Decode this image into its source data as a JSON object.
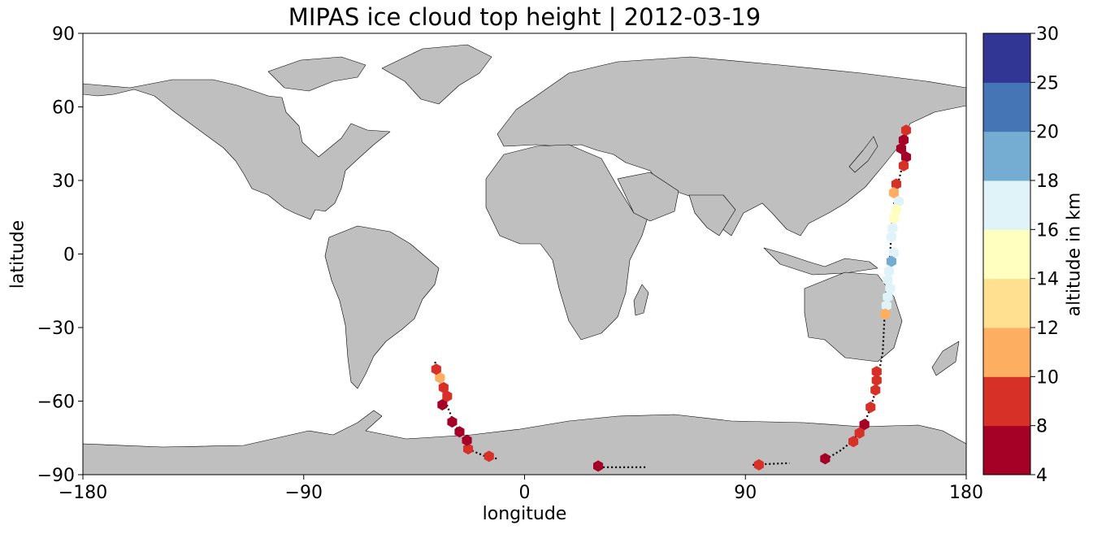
{
  "title": "MIPAS ice cloud top height | 2012-03-19",
  "xlabel": "longitude",
  "ylabel": "latitude",
  "colorbar": {
    "label": "altitude in km",
    "boundaries": [
      4,
      8,
      10,
      12,
      14,
      16,
      18,
      20,
      25,
      30
    ],
    "tick_labels": [
      "4",
      "8",
      "10",
      "12",
      "14",
      "16",
      "18",
      "20",
      "25",
      "30"
    ],
    "colors": [
      "#a50026",
      "#d73027",
      "#f46d43",
      "#fdae61",
      "#fee090",
      "#ffffbf",
      "#e0f3f8",
      "#abd9e9",
      "#74add1",
      "#4575b4",
      "#313695"
    ]
  },
  "land_color": "#bfbfbf",
  "x_ticks": [
    "−180",
    "−90",
    "0",
    "90",
    "180"
  ],
  "y_ticks": [
    "90",
    "60",
    "30",
    "0",
    "−30",
    "−60",
    "−90"
  ],
  "chart_data": {
    "type": "scatter",
    "xlim": [
      -180,
      180
    ],
    "ylim": [
      -90,
      90
    ],
    "x_tick_values": [
      -180,
      -90,
      0,
      90,
      180
    ],
    "y_tick_values": [
      90,
      60,
      30,
      0,
      -30,
      -60,
      -90
    ],
    "points": [
      {
        "lon": 155.5,
        "lat": 50.5,
        "alt": 9
      },
      {
        "lon": 154.5,
        "lat": 46.5,
        "alt": 6
      },
      {
        "lon": 153.5,
        "lat": 43.0,
        "alt": 6
      },
      {
        "lon": 155.5,
        "lat": 39.5,
        "alt": 6
      },
      {
        "lon": 154.5,
        "lat": 36.0,
        "alt": 9
      },
      {
        "lon": 151.5,
        "lat": 28.5,
        "alt": 9
      },
      {
        "lon": 150.5,
        "lat": 25.0,
        "alt": 11
      },
      {
        "lon": 152.5,
        "lat": 21.5,
        "alt": 17
      },
      {
        "lon": 151.5,
        "lat": 18.0,
        "alt": 15
      },
      {
        "lon": 150.5,
        "lat": 14.5,
        "alt": 15
      },
      {
        "lon": 150.0,
        "lat": 10.5,
        "alt": 17
      },
      {
        "lon": 149.5,
        "lat": 7.0,
        "alt": 17
      },
      {
        "lon": 150.5,
        "lat": 0.5,
        "alt": 17
      },
      {
        "lon": 149.5,
        "lat": -3.0,
        "alt": 19
      },
      {
        "lon": 148.5,
        "lat": -7.0,
        "alt": 17
      },
      {
        "lon": 148.0,
        "lat": -10.5,
        "alt": 17
      },
      {
        "lon": 149.0,
        "lat": -14.0,
        "alt": 17
      },
      {
        "lon": 148.0,
        "lat": -17.5,
        "alt": 17
      },
      {
        "lon": 147.5,
        "lat": -21.0,
        "alt": 17
      },
      {
        "lon": 147.0,
        "lat": -24.5,
        "alt": 11
      },
      {
        "lon": 143.5,
        "lat": -48.0,
        "alt": 9
      },
      {
        "lon": 143.5,
        "lat": -51.5,
        "alt": 9
      },
      {
        "lon": 143.0,
        "lat": -55.5,
        "alt": 9
      },
      {
        "lon": 141.0,
        "lat": -62.5,
        "alt": 9
      },
      {
        "lon": 138.5,
        "lat": -69.5,
        "alt": 6
      },
      {
        "lon": 136.5,
        "lat": -73.0,
        "alt": 9
      },
      {
        "lon": 134.0,
        "lat": -76.5,
        "alt": 9
      },
      {
        "lon": 122.5,
        "lat": -83.5,
        "alt": 6
      },
      {
        "lon": 95.5,
        "lat": -86.0,
        "alt": 9
      },
      {
        "lon": 30.0,
        "lat": -86.5,
        "alt": 6
      },
      {
        "lon": -14.5,
        "lat": -82.5,
        "alt": 9
      },
      {
        "lon": -23.0,
        "lat": -79.5,
        "alt": 9
      },
      {
        "lon": -23.5,
        "lat": -76.0,
        "alt": 6
      },
      {
        "lon": -26.5,
        "lat": -72.5,
        "alt": 6
      },
      {
        "lon": -29.5,
        "lat": -68.5,
        "alt": 6
      },
      {
        "lon": -33.5,
        "lat": -61.5,
        "alt": 6
      },
      {
        "lon": -31.5,
        "lat": -58.0,
        "alt": 9
      },
      {
        "lon": -33.0,
        "lat": -54.5,
        "alt": 9
      },
      {
        "lon": -34.5,
        "lat": -50.5,
        "alt": 11
      },
      {
        "lon": -36.0,
        "lat": -47.0,
        "alt": 9
      }
    ],
    "tracks": [
      [
        [
          156,
          52
        ],
        [
          155,
          44
        ],
        [
          154,
          36
        ],
        [
          152,
          28
        ],
        [
          150.5,
          20
        ],
        [
          149.5,
          10
        ],
        [
          149,
          0
        ],
        [
          148,
          -10
        ],
        [
          147,
          -20
        ],
        [
          146.5,
          -30
        ],
        [
          146,
          -40
        ],
        [
          144.5,
          -48
        ],
        [
          143,
          -56
        ],
        [
          141,
          -63
        ],
        [
          138,
          -70
        ],
        [
          134,
          -76
        ],
        [
          129,
          -80
        ],
        [
          124,
          -83
        ],
        [
          121,
          -84.5
        ]
      ],
      [
        [
          93,
          -86
        ],
        [
          98,
          -85.7
        ],
        [
          103,
          -85.5
        ],
        [
          108,
          -85.3
        ]
      ],
      [
        [
          32,
          -87
        ],
        [
          37,
          -87
        ],
        [
          42,
          -87
        ],
        [
          47,
          -87
        ],
        [
          50,
          -87
        ]
      ],
      [
        [
          -36.5,
          -44
        ],
        [
          -35,
          -50
        ],
        [
          -33,
          -56
        ],
        [
          -31.5,
          -62
        ],
        [
          -29.5,
          -67
        ],
        [
          -27,
          -72
        ],
        [
          -24,
          -76
        ],
        [
          -22,
          -80
        ],
        [
          -16,
          -82.5
        ],
        [
          -11,
          -83.5
        ]
      ]
    ]
  }
}
